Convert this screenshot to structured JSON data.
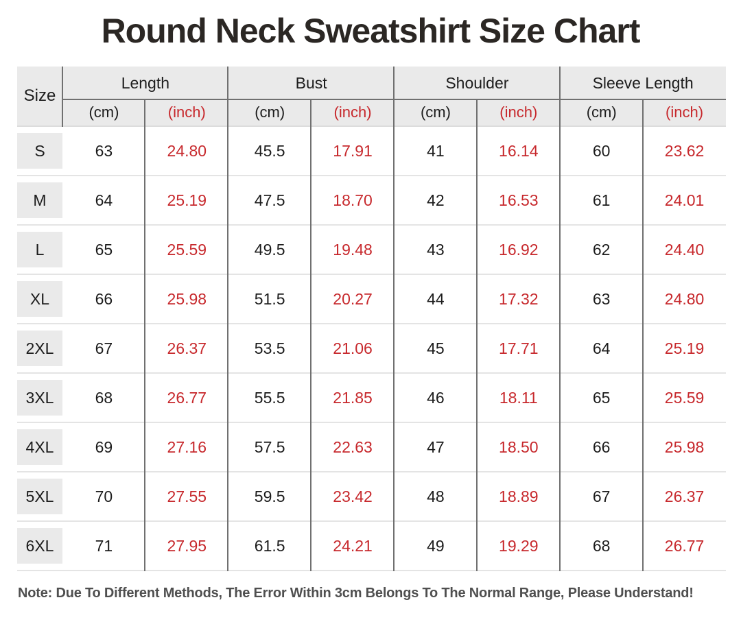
{
  "colors": {
    "accent_red": "#c7282c",
    "header_bg": "#eaeaea",
    "divider_dark": "#707070",
    "row_line": "#e4e4e4",
    "title_color": "#2b2724",
    "note_color": "#4f4f4f"
  },
  "chart_data": {
    "type": "table",
    "title": "Round Neck Sweatshirt Size Chart",
    "size_column_header": "Size",
    "column_groups": [
      "Length",
      "Bust",
      "Shoulder",
      "Sleeve Length"
    ],
    "sub_columns": [
      "(cm)",
      "(inch)"
    ],
    "sizes": [
      "S",
      "M",
      "L",
      "XL",
      "2XL",
      "3XL",
      "4XL",
      "5XL",
      "6XL"
    ],
    "rows": [
      {
        "size": "S",
        "values": [
          "63",
          "24.80",
          "45.5",
          "17.91",
          "41",
          "16.14",
          "60",
          "23.62"
        ]
      },
      {
        "size": "M",
        "values": [
          "64",
          "25.19",
          "47.5",
          "18.70",
          "42",
          "16.53",
          "61",
          "24.01"
        ]
      },
      {
        "size": "L",
        "values": [
          "65",
          "25.59",
          "49.5",
          "19.48",
          "43",
          "16.92",
          "62",
          "24.40"
        ]
      },
      {
        "size": "XL",
        "values": [
          "66",
          "25.98",
          "51.5",
          "20.27",
          "44",
          "17.32",
          "63",
          "24.80"
        ]
      },
      {
        "size": "2XL",
        "values": [
          "67",
          "26.37",
          "53.5",
          "21.06",
          "45",
          "17.71",
          "64",
          "25.19"
        ]
      },
      {
        "size": "3XL",
        "values": [
          "68",
          "26.77",
          "55.5",
          "21.85",
          "46",
          "18.11",
          "65",
          "25.59"
        ]
      },
      {
        "size": "4XL",
        "values": [
          "69",
          "27.16",
          "57.5",
          "22.63",
          "47",
          "18.50",
          "66",
          "25.98"
        ]
      },
      {
        "size": "5XL",
        "values": [
          "70",
          "27.55",
          "59.5",
          "23.42",
          "48",
          "18.89",
          "67",
          "26.37"
        ]
      },
      {
        "size": "6XL",
        "values": [
          "71",
          "27.95",
          "61.5",
          "24.21",
          "49",
          "19.29",
          "68",
          "26.77"
        ]
      }
    ],
    "note": "Note: Due To Different Methods, The Error Within 3cm Belongs To The Normal Range, Please Understand!"
  }
}
